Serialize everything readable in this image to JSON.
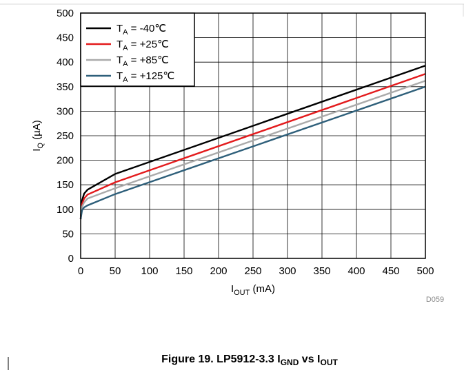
{
  "chart_data": {
    "type": "line",
    "title": "",
    "xlabel": {
      "base": "I",
      "sub": "OUT",
      "rest": " (mA)"
    },
    "ylabel": {
      "base": "I",
      "sub": "Q",
      "rest": " (µA)"
    },
    "xlim": [
      0,
      500
    ],
    "ylim": [
      0,
      500
    ],
    "xticks": [
      0,
      50,
      100,
      150,
      200,
      250,
      300,
      350,
      400,
      450,
      500
    ],
    "yticks": [
      0,
      50,
      100,
      150,
      200,
      250,
      300,
      350,
      400,
      450,
      500
    ],
    "grid": true,
    "legend_position": "top-left",
    "series": [
      {
        "name": "T_A = -40℃",
        "legend_base": "T",
        "legend_sub": "A",
        "legend_rest": " = -40℃",
        "color": "#000000",
        "x": [
          0,
          2,
          5,
          10,
          50,
          500
        ],
        "y": [
          80,
          118,
          132,
          140,
          172,
          393
        ]
      },
      {
        "name": "T_A = +25℃",
        "legend_base": "T",
        "legend_sub": "A",
        "legend_rest": " = +25℃",
        "color": "#e31a1c",
        "x": [
          0,
          2,
          5,
          10,
          50,
          500
        ],
        "y": [
          80,
          110,
          122,
          130,
          155,
          376
        ]
      },
      {
        "name": "T_A = +85℃",
        "legend_base": "T",
        "legend_sub": "A",
        "legend_rest": " = +85℃",
        "color": "#aaaaaa",
        "x": [
          0,
          2,
          5,
          10,
          50,
          500
        ],
        "y": [
          80,
          105,
          114,
          122,
          143,
          362
        ]
      },
      {
        "name": "T_A = +125℃",
        "legend_base": "T",
        "legend_sub": "A",
        "legend_rest": " = +125℃",
        "color": "#2e5f7a",
        "x": [
          0,
          2,
          5,
          10,
          50,
          500
        ],
        "y": [
          80,
          98,
          104,
          108,
          131,
          350
        ]
      }
    ]
  },
  "figure_code": "D059",
  "caption": {
    "prefix": "Figure 19. LP5912-3.3 I",
    "sub1": "GND",
    "mid": " vs I",
    "sub2": "OUT"
  }
}
